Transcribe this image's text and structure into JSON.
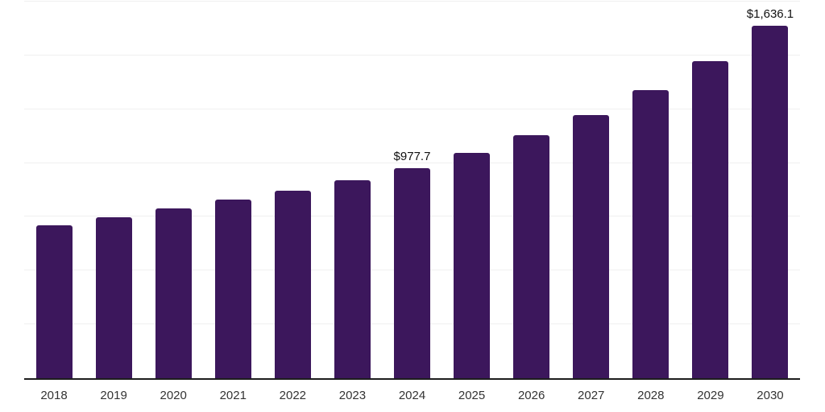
{
  "colors": {
    "background": "#ffffff",
    "bar": "#3c175c",
    "grid": "#f0f0f0",
    "axis": "#1d1d1d",
    "value_label": "#111111",
    "tick_label": "#333333"
  },
  "chart_data": {
    "type": "bar",
    "title": "",
    "xlabel": "",
    "ylabel": "",
    "categories": [
      "2018",
      "2019",
      "2020",
      "2021",
      "2022",
      "2023",
      "2024",
      "2025",
      "2026",
      "2027",
      "2028",
      "2029",
      "2030"
    ],
    "values": [
      710,
      748,
      789,
      829,
      872,
      920,
      977.7,
      1047,
      1128,
      1222,
      1338,
      1474,
      1636.1
    ],
    "data_labels": [
      null,
      null,
      null,
      null,
      null,
      null,
      "$977.7",
      null,
      null,
      null,
      null,
      null,
      "$1,636.1"
    ],
    "ylim": [
      0,
      1750
    ],
    "grid_step": 250,
    "grid": true,
    "legend": false,
    "y_axis_labels_visible": false
  }
}
